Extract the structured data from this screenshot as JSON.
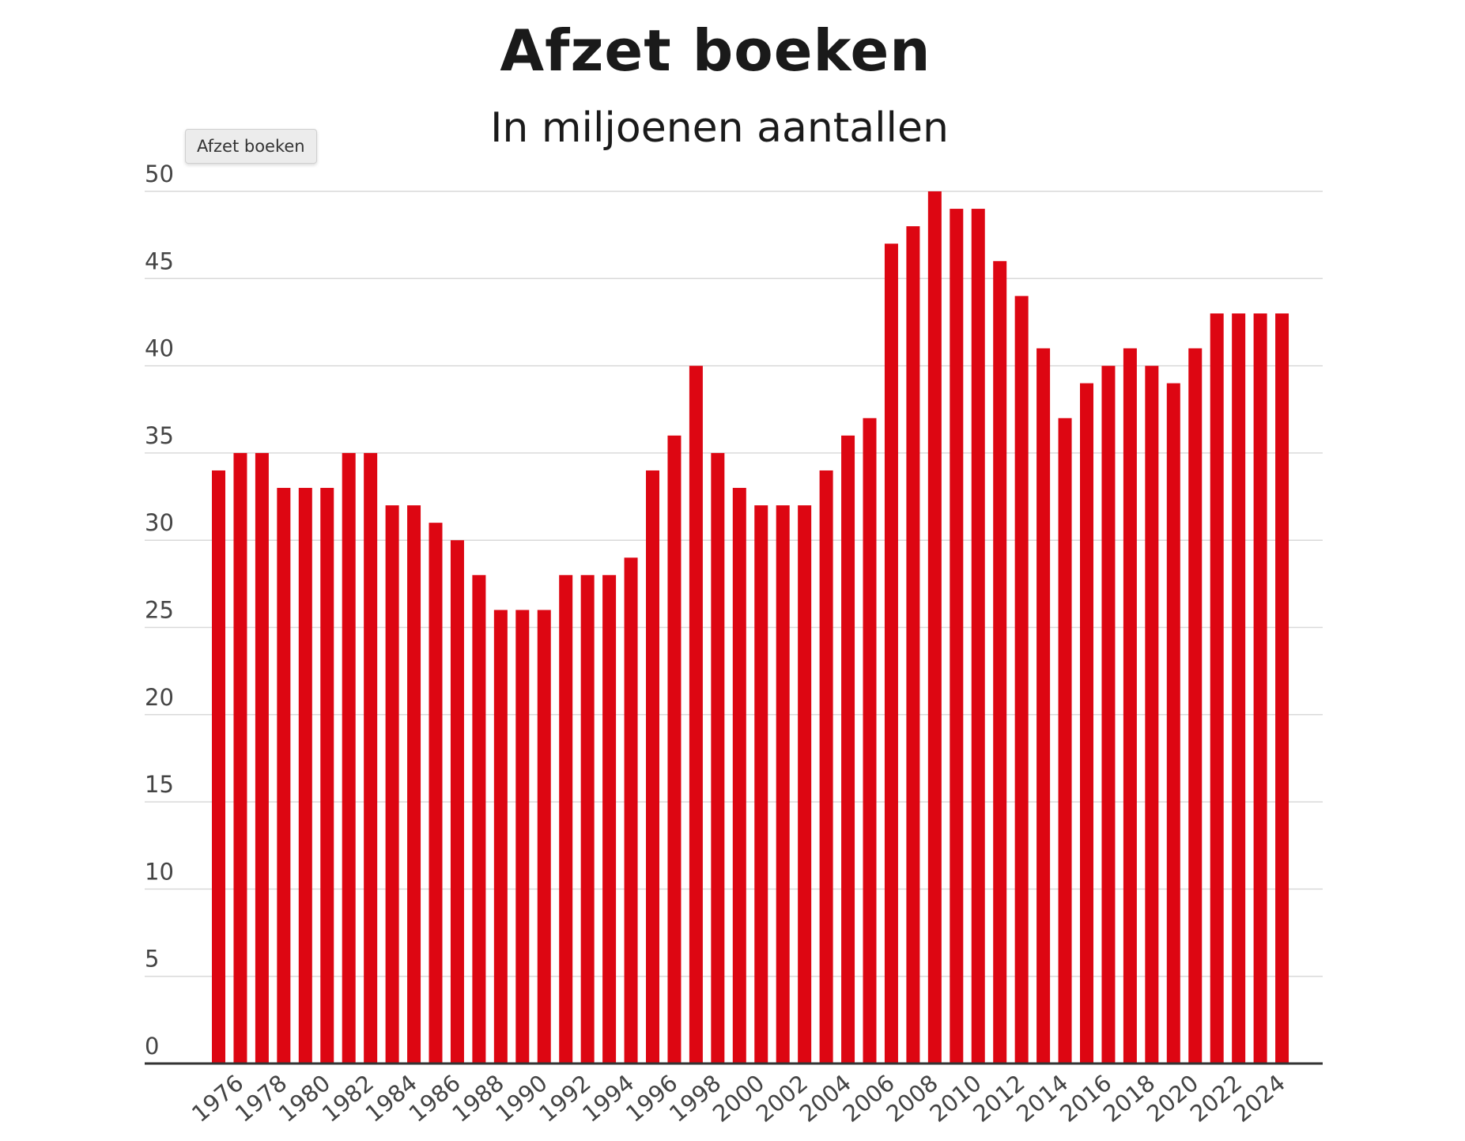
{
  "tooltip": {
    "label": "Afzet boeken"
  },
  "colors": {
    "bar": "#dd0612",
    "grid": "#d9d9d9",
    "axis": "#333333",
    "background": "#ffffff"
  },
  "chart_data": {
    "type": "bar",
    "title": "Afzet boeken",
    "subtitle": "In miljoenen aantallen",
    "xlabel": "",
    "ylabel": "",
    "ylim": [
      0,
      50
    ],
    "yticks": [
      0,
      5,
      10,
      15,
      20,
      25,
      30,
      35,
      40,
      45,
      50
    ],
    "grid": true,
    "categories": [
      1975,
      1976,
      1977,
      1978,
      1979,
      1980,
      1981,
      1982,
      1983,
      1984,
      1985,
      1986,
      1987,
      1988,
      1989,
      1990,
      1991,
      1992,
      1993,
      1994,
      1995,
      1996,
      1997,
      1998,
      1999,
      2000,
      2001,
      2002,
      2003,
      2004,
      2005,
      2006,
      2007,
      2008,
      2009,
      2010,
      2011,
      2012,
      2013,
      2014,
      2015,
      2016,
      2017,
      2018,
      2019,
      2020,
      2021,
      2022,
      2023,
      2024
    ],
    "xtick_labels": [
      "1976",
      "1978",
      "1980",
      "1982",
      "1984",
      "1986",
      "1988",
      "1990",
      "1992",
      "1994",
      "1996",
      "1998",
      "2000",
      "2002",
      "2004",
      "2006",
      "2008",
      "2010",
      "2012",
      "2014",
      "2016",
      "2018",
      "2020",
      "2022",
      "2024"
    ],
    "series": [
      {
        "values": [
          34,
          35,
          35,
          33,
          33,
          33,
          35,
          35,
          32,
          32,
          31,
          30,
          28,
          26,
          26,
          26,
          28,
          28,
          28,
          29,
          34,
          36,
          40,
          35,
          33,
          32,
          32,
          32,
          34,
          36,
          37,
          47,
          48,
          50,
          49,
          49,
          46,
          44,
          41,
          37,
          39,
          40,
          41,
          40,
          39,
          41,
          43,
          43,
          43,
          43
        ]
      }
    ]
  }
}
